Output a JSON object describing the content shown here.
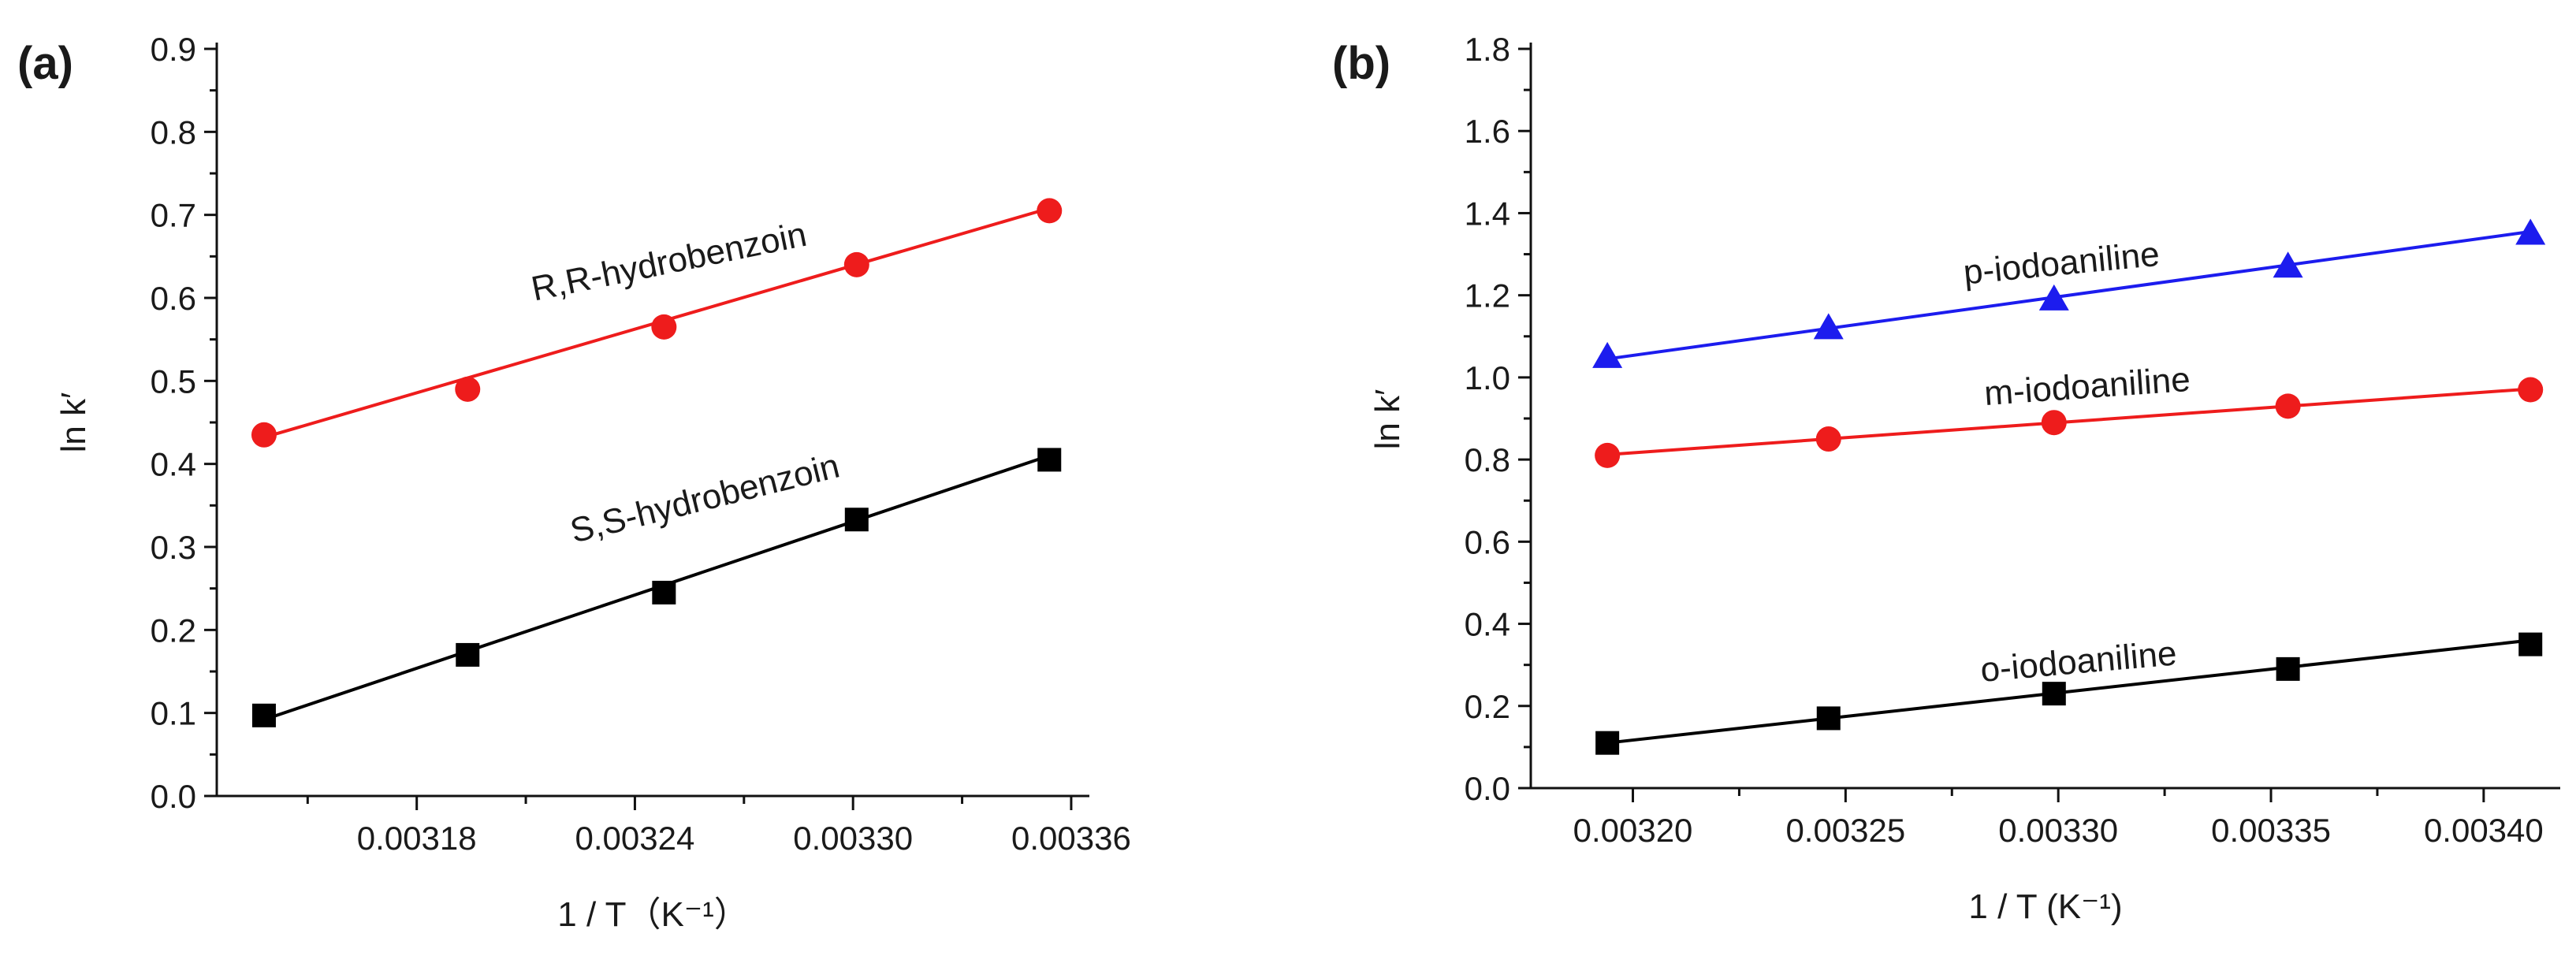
{
  "chart_data": [
    {
      "type": "scatter",
      "panel_label": "(a)",
      "title": "",
      "xlabel": "1 / T（K⁻¹）",
      "ylabel": "ln k′",
      "xlim": [
        0.003125,
        0.003365
      ],
      "ylim": [
        0.0,
        0.9
      ],
      "xticks": [
        0.00318,
        0.00324,
        0.0033,
        0.00336
      ],
      "xtick_labels": [
        "0.00318",
        "0.00324",
        "0.00330",
        "0.00336"
      ],
      "yticks": [
        0.0,
        0.1,
        0.2,
        0.3,
        0.4,
        0.5,
        0.6,
        0.7,
        0.8,
        0.9
      ],
      "ytick_labels": [
        "0.0",
        "0.1",
        "0.2",
        "0.3",
        "0.4",
        "0.5",
        "0.6",
        "0.7",
        "0.8",
        "0.9"
      ],
      "grid": false,
      "series": [
        {
          "name": "R,R-hydrobenzoin",
          "marker": "circle",
          "color": "#ee1c1c",
          "x": [
            0.003138,
            0.003194,
            0.003248,
            0.003301,
            0.003354
          ],
          "y": [
            0.435,
            0.49,
            0.565,
            0.64,
            0.705
          ],
          "fit": [
            [
              0.003138,
              0.432
            ],
            [
              0.003354,
              0.708
            ]
          ]
        },
        {
          "name": "S,S-hydrobenzoin",
          "marker": "square",
          "color": "#000000",
          "x": [
            0.003138,
            0.003194,
            0.003248,
            0.003301,
            0.003354
          ],
          "y": [
            0.097,
            0.17,
            0.245,
            0.333,
            0.405
          ],
          "fit": [
            [
              0.003138,
              0.092
            ],
            [
              0.003354,
              0.41
            ]
          ]
        }
      ]
    },
    {
      "type": "scatter",
      "panel_label": "(b)",
      "title": "",
      "xlabel": "1 / T (K⁻¹)",
      "ylabel": "ln k′",
      "xlim": [
        0.003176,
        0.003418
      ],
      "ylim": [
        0.0,
        1.8
      ],
      "xticks": [
        0.0032,
        0.00325,
        0.0033,
        0.00335,
        0.0034
      ],
      "xtick_labels": [
        "0.00320",
        "0.00325",
        "0.00330",
        "0.00335",
        "0.00340"
      ],
      "yticks": [
        0.0,
        0.2,
        0.4,
        0.6,
        0.8,
        1.0,
        1.2,
        1.4,
        1.6,
        1.8
      ],
      "ytick_labels": [
        "0.0",
        "0.2",
        "0.4",
        "0.6",
        "0.8",
        "1.0",
        "1.2",
        "1.4",
        "1.6",
        "1.8"
      ],
      "grid": false,
      "series": [
        {
          "name": "p-iodoaniline",
          "marker": "triangle",
          "color": "#1c1cee",
          "x": [
            0.003194,
            0.003246,
            0.003299,
            0.003354,
            0.003411
          ],
          "y": [
            1.05,
            1.12,
            1.19,
            1.27,
            1.35
          ],
          "fit": [
            [
              0.003194,
              1.045
            ],
            [
              0.003411,
              1.355
            ]
          ]
        },
        {
          "name": "m-iodoaniline",
          "marker": "circle",
          "color": "#ee1c1c",
          "x": [
            0.003194,
            0.003246,
            0.003299,
            0.003354,
            0.003411
          ],
          "y": [
            0.81,
            0.85,
            0.89,
            0.93,
            0.97
          ],
          "fit": [
            [
              0.003194,
              0.812
            ],
            [
              0.003411,
              0.972
            ]
          ]
        },
        {
          "name": "o-iodoaniline",
          "marker": "square",
          "color": "#000000",
          "x": [
            0.003194,
            0.003246,
            0.003299,
            0.003354,
            0.003411
          ],
          "y": [
            0.11,
            0.17,
            0.23,
            0.29,
            0.35
          ],
          "fit": [
            [
              0.003194,
              0.11
            ],
            [
              0.003411,
              0.36
            ]
          ]
        }
      ]
    }
  ]
}
